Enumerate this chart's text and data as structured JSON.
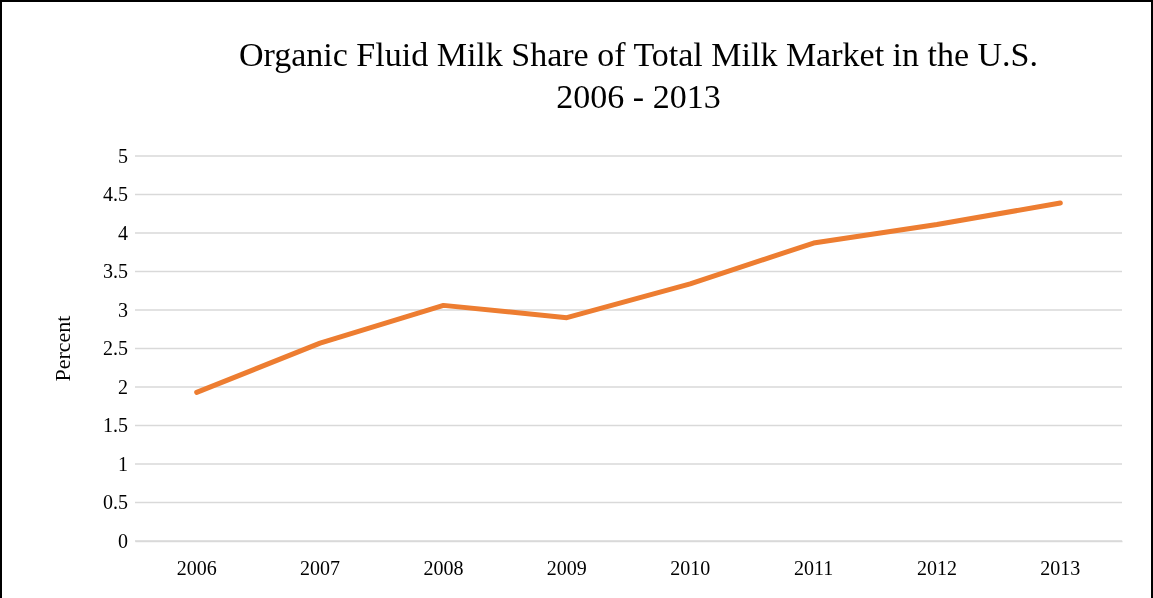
{
  "chart_data": {
    "type": "line",
    "title": "Organic Fluid Milk Share of Total Milk Market in the U.S.\n2006 - 2013",
    "ylabel": "Percent",
    "categories": [
      "2006",
      "2007",
      "2008",
      "2009",
      "2010",
      "2011",
      "2012",
      "2013"
    ],
    "series": [
      {
        "color": "#ed7d31",
        "values": [
          1.93,
          2.57,
          3.06,
          2.9,
          3.34,
          3.87,
          4.11,
          4.39
        ]
      }
    ],
    "ylim": [
      0,
      5
    ],
    "yticks": [
      0,
      0.5,
      1,
      1.5,
      2,
      2.5,
      3,
      3.5,
      4,
      4.5,
      5
    ],
    "grid": "y",
    "marker": "none",
    "line_style": "solid"
  }
}
